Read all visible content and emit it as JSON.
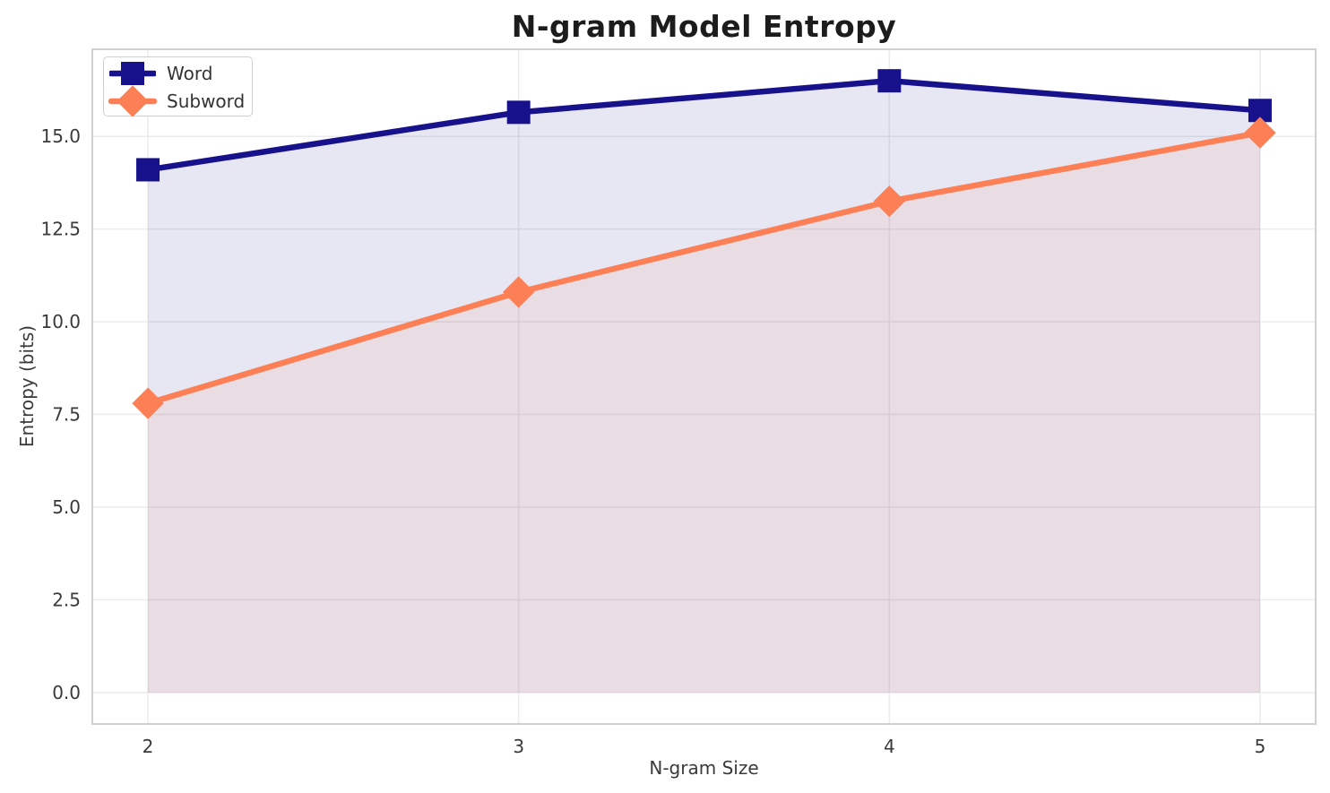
{
  "chart_data": {
    "type": "line",
    "title": "N-gram Model Entropy",
    "xlabel": "N-gram Size",
    "ylabel": "Entropy (bits)",
    "x": [
      2,
      3,
      4,
      5
    ],
    "xtick_labels": [
      "2",
      "3",
      "4",
      "5"
    ],
    "yticks": [
      0.0,
      2.5,
      5.0,
      7.5,
      10.0,
      12.5,
      15.0
    ],
    "ytick_labels": [
      "0.0",
      "2.5",
      "5.0",
      "7.5",
      "10.0",
      "12.5",
      "15.0"
    ],
    "xlim": [
      1.85,
      5.15
    ],
    "ylim": [
      -0.85,
      17.35
    ],
    "grid": true,
    "legend_position": "upper-left",
    "series": [
      {
        "name": "Word",
        "values": [
          14.1,
          15.65,
          16.5,
          15.7
        ],
        "color": "#17128c",
        "marker": "square",
        "fill_to_zero": true
      },
      {
        "name": "Subword",
        "values": [
          7.8,
          10.8,
          13.25,
          15.1
        ],
        "color": "#fc7f55",
        "marker": "diamond",
        "fill_to_zero": true
      }
    ],
    "style": {
      "grid_color": "#ebebeb",
      "border_color": "#d0d0d0",
      "tick_color": "#3a3a3a",
      "fill_opacity": 0.1,
      "line_width": 6.5,
      "title_color": "#1c1c1c"
    }
  }
}
